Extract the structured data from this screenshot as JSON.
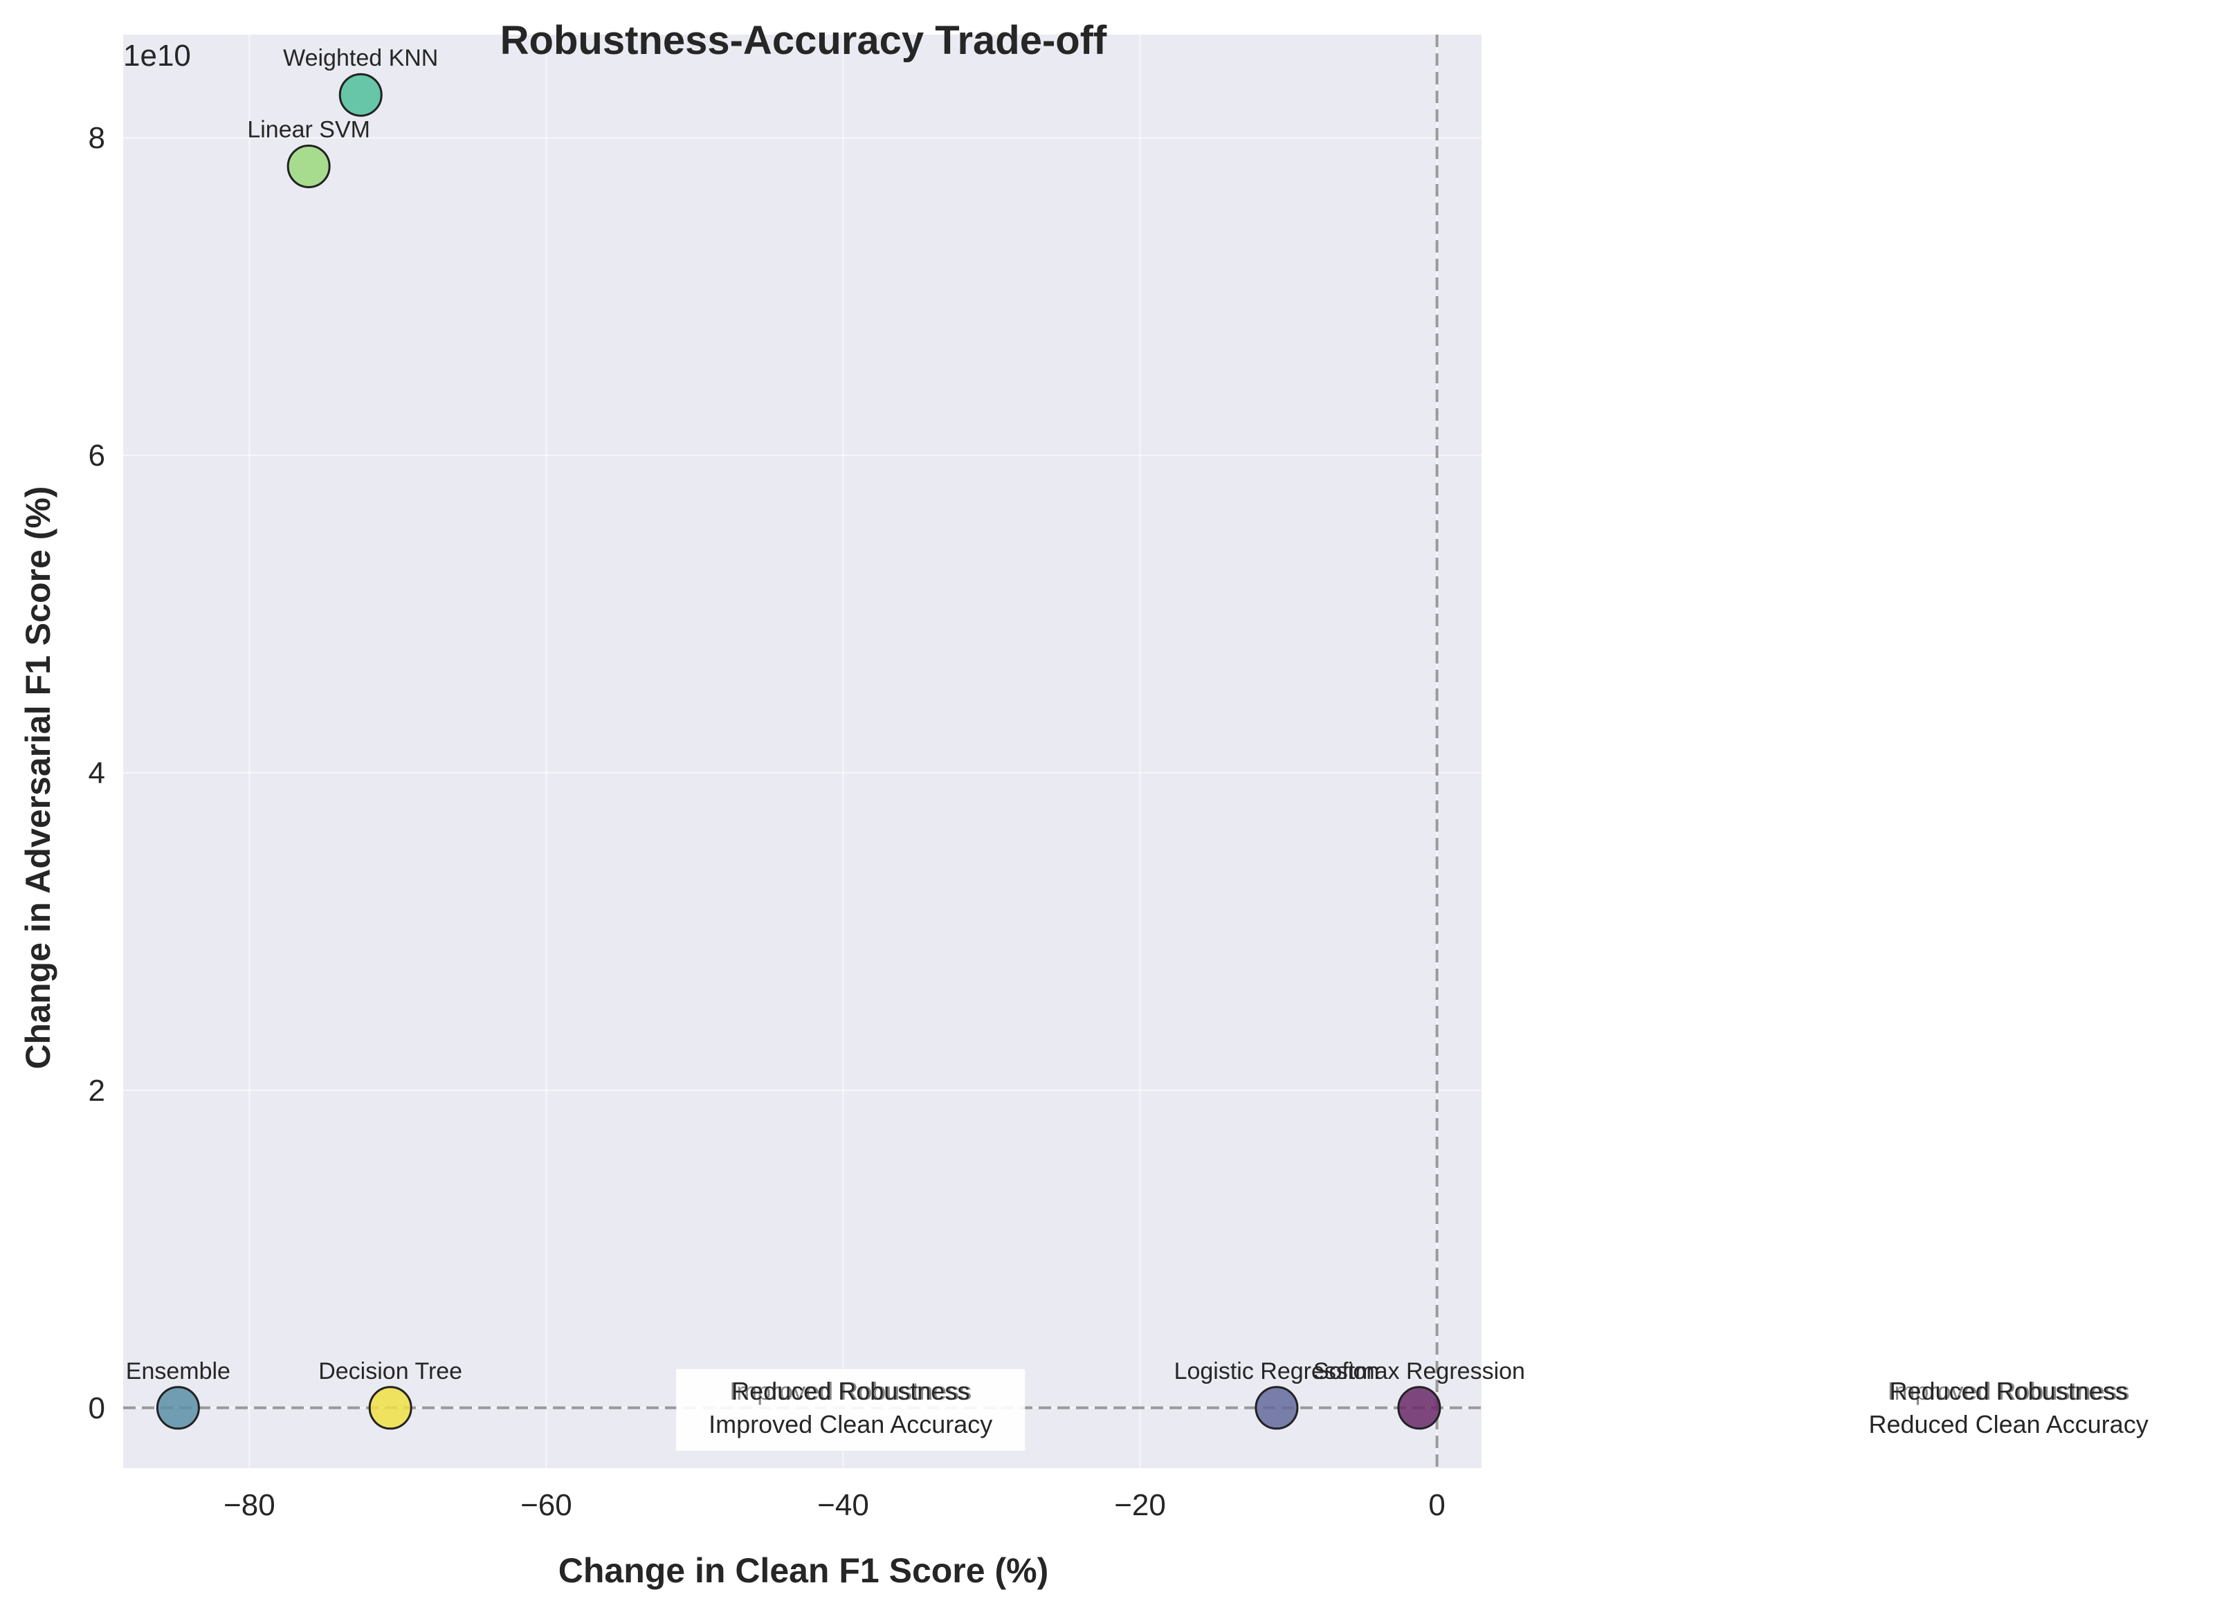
{
  "chart_data": {
    "type": "scatter",
    "title": "Robustness-Accuracy Trade-off",
    "xlabel": "Change in Clean F1 Score (%)",
    "ylabel": "Change in Adversarial F1 Score (%)",
    "y_offset_label": "1e10",
    "y_scale_multiplier": 10000000000,
    "xlim": [
      -88.5,
      3
    ],
    "ylim": [
      -0.38,
      8.65
    ],
    "x_ticks": [
      -80,
      -60,
      -40,
      -20,
      0
    ],
    "y_ticks": [
      0,
      2,
      4,
      6,
      8
    ],
    "grid": true,
    "reference_lines": {
      "x": 0,
      "y": 0,
      "style": "dashed"
    },
    "points": [
      {
        "name": "Weighted KNN",
        "x": -72.5,
        "y": 8.27,
        "color": "#4fbf9a"
      },
      {
        "name": "Linear SVM",
        "x": -76.0,
        "y": 7.82,
        "color": "#9bd97c"
      },
      {
        "name": "Ensemble",
        "x": -84.8,
        "y": 0.0,
        "color": "#5a8fa6"
      },
      {
        "name": "Decision Tree",
        "x": -70.5,
        "y": 0.0,
        "color": "#f0e044"
      },
      {
        "name": "Logistic Regression",
        "x": -10.8,
        "y": 0.0,
        "color": "#646a9c"
      },
      {
        "name": "Softmax Regression",
        "x": -1.2,
        "y": 0.0,
        "color": "#6a2a6a"
      }
    ],
    "quadrant_annotations": [
      {
        "x": -39.5,
        "line1": "Reduced Robustness",
        "line2": "Improved Clean Accuracy",
        "ghost": "Improved Robustness",
        "boxed": true
      },
      {
        "x": 38.5,
        "line1": "Reduced Robustness",
        "line2": "Reduced Clean Accuracy",
        "ghost": "Improved Robustness",
        "boxed": false
      }
    ]
  }
}
